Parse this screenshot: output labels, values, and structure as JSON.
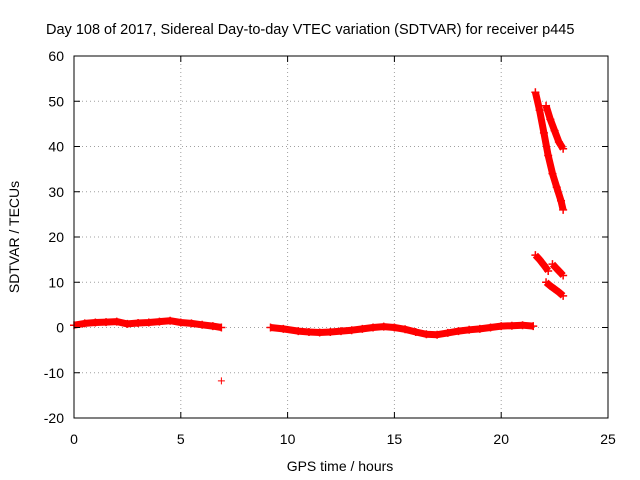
{
  "chart_data": {
    "type": "scatter",
    "title": "Day 108 of 2017, Sidereal Day-to-day VTEC variation (SDTVAR) for receiver p445",
    "xlabel": "GPS time / hours",
    "ylabel": "SDTVAR / TECUs",
    "xlim": [
      0,
      25
    ],
    "ylim": [
      -20,
      60
    ],
    "xticks": [
      "0",
      "5",
      "10",
      "15",
      "20",
      "25"
    ],
    "yticks": [
      "-20",
      "-10",
      "0",
      "10",
      "20",
      "30",
      "40",
      "50",
      "60"
    ],
    "grid": true,
    "marker": "+",
    "series": [
      {
        "color": "#ff0000",
        "segments": [
          [
            [
              0.0,
              0.5
            ],
            [
              0.5,
              0.9
            ],
            [
              1.0,
              1.1
            ],
            [
              1.5,
              1.2
            ],
            [
              2.0,
              1.3
            ],
            [
              2.5,
              0.8
            ],
            [
              3.0,
              1.0
            ],
            [
              3.5,
              1.1
            ],
            [
              4.0,
              1.3
            ],
            [
              4.5,
              1.5
            ],
            [
              5.0,
              1.1
            ],
            [
              5.5,
              0.9
            ],
            [
              6.0,
              0.6
            ],
            [
              6.5,
              0.3
            ],
            [
              6.9,
              0.0
            ]
          ],
          [
            [
              9.2,
              0.0
            ],
            [
              9.8,
              -0.3
            ],
            [
              10.5,
              -0.8
            ],
            [
              11.0,
              -1.0
            ],
            [
              11.5,
              -1.1
            ],
            [
              12.0,
              -1.0
            ],
            [
              12.5,
              -0.8
            ],
            [
              13.0,
              -0.6
            ],
            [
              13.5,
              -0.3
            ],
            [
              14.0,
              0.0
            ],
            [
              14.5,
              0.2
            ],
            [
              15.0,
              0.0
            ],
            [
              15.5,
              -0.4
            ],
            [
              16.0,
              -1.0
            ],
            [
              16.5,
              -1.5
            ],
            [
              17.0,
              -1.6
            ],
            [
              17.5,
              -1.2
            ],
            [
              18.0,
              -0.8
            ],
            [
              18.5,
              -0.5
            ],
            [
              19.0,
              -0.3
            ],
            [
              19.5,
              0.0
            ],
            [
              20.0,
              0.3
            ],
            [
              20.5,
              0.4
            ],
            [
              21.0,
              0.5
            ],
            [
              21.5,
              0.3
            ]
          ],
          [
            [
              21.6,
              52.0
            ],
            [
              21.8,
              48.0
            ],
            [
              22.0,
              43.0
            ],
            [
              22.2,
              38.0
            ],
            [
              22.4,
              34.0
            ],
            [
              22.6,
              31.0
            ],
            [
              22.8,
              28.0
            ],
            [
              22.9,
              26.0
            ]
          ],
          [
            [
              22.1,
              49.0
            ],
            [
              22.3,
              46.0
            ],
            [
              22.5,
              43.5
            ],
            [
              22.7,
              41.0
            ],
            [
              22.9,
              39.5
            ]
          ],
          [
            [
              21.6,
              16.0
            ],
            [
              21.8,
              15.0
            ],
            [
              22.0,
              13.8
            ],
            [
              22.2,
              12.5
            ]
          ],
          [
            [
              22.4,
              14.0
            ],
            [
              22.6,
              13.0
            ],
            [
              22.8,
              12.0
            ],
            [
              22.9,
              11.5
            ]
          ],
          [
            [
              22.1,
              10.0
            ],
            [
              22.3,
              9.2
            ],
            [
              22.5,
              8.5
            ],
            [
              22.7,
              7.8
            ],
            [
              22.9,
              7.0
            ]
          ]
        ],
        "points": [
          [
            6.9,
            -11.8
          ]
        ]
      }
    ]
  }
}
